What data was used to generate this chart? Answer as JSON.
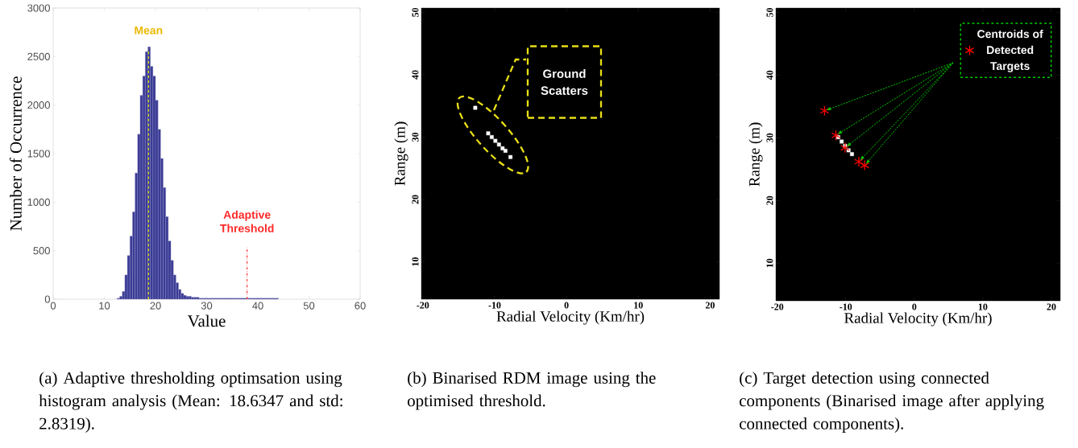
{
  "chart_data": [
    {
      "type": "histogram",
      "xlabel": "Value",
      "ylabel": "Number of Occurrence",
      "color": "#3b3b96",
      "bins": [
        12.5,
        13,
        13.5,
        14,
        14.5,
        15,
        15.5,
        16,
        16.5,
        17,
        17.5,
        18,
        18.5,
        19,
        19.5,
        20,
        20.5,
        21,
        21.5,
        22,
        22.5,
        23,
        23.5,
        24,
        24.5,
        25,
        25.5,
        26,
        26.5,
        27,
        27.5,
        28,
        28.5,
        29,
        29.5,
        30,
        30.5,
        31,
        31.5,
        32,
        32.5,
        33,
        33.5,
        34,
        34.5,
        35,
        35.5,
        36,
        36.5,
        37,
        37.5,
        38,
        38.5,
        39,
        39.5,
        40,
        40.5,
        41,
        41.5,
        42,
        42.5,
        43,
        43.5,
        44
      ],
      "values": [
        10,
        30,
        80,
        250,
        450,
        650,
        900,
        1300,
        1700,
        2100,
        2300,
        2550,
        2600,
        2400,
        2300,
        2050,
        1750,
        1450,
        1150,
        850,
        600,
        400,
        250,
        170,
        100,
        60,
        40,
        30,
        30,
        20,
        20,
        20,
        10,
        10,
        10,
        10,
        10,
        10,
        10,
        10,
        10,
        10,
        10,
        10,
        10,
        10,
        10,
        10,
        10,
        10,
        10,
        10,
        10,
        10,
        10,
        10,
        10,
        10,
        10,
        10,
        10,
        10,
        10
      ],
      "xlim": [
        0,
        60
      ],
      "ylim": [
        0,
        3000
      ],
      "xticks": [
        0,
        10,
        20,
        30,
        40,
        50,
        60
      ],
      "yticks": [
        0,
        500,
        1000,
        1500,
        2000,
        2500,
        3000
      ],
      "ref_lines": [
        {
          "axis": "x",
          "value": 18.63,
          "label": "Mean",
          "color": "#e6e600",
          "line_style": "dashed"
        },
        {
          "axis": "x",
          "value": 37.9,
          "label": "Adaptive Threshold",
          "color": "#ff3333",
          "line_style": "dashdot"
        }
      ],
      "annotations": [
        "(a) Adaptive thresholding optimsation using histogram analysis (Mean: 18.6347 and std: 2.8319)."
      ]
    },
    {
      "type": "scatter",
      "xlabel": "Radial Velocity (Km/hr)",
      "ylabel": "Range (m)",
      "marker": "square",
      "series": [
        {
          "color": "#ffffff",
          "x": [
            -10.9,
            -10.4,
            -9.9,
            -9.4,
            -8.9,
            -8.5,
            -12.7,
            -7.8
          ],
          "values": [
            30.6,
            30.0,
            29.4,
            28.8,
            28.2,
            27.8,
            34.7,
            26.8
          ]
        }
      ],
      "xlim": [
        -20.2,
        21.3
      ],
      "ylim": [
        4,
        50.7
      ],
      "xticks": [
        -20,
        -10,
        0,
        10,
        20
      ],
      "yticks": [
        10,
        20,
        30,
        40,
        50
      ],
      "annotations": [
        "Ground Scatters",
        "(b) Binarised RDM image using the optimised threshold."
      ]
    },
    {
      "type": "scatter",
      "xlabel": "Radial Velocity (Km/hr)",
      "ylabel": "Range (m)",
      "legend": "top right",
      "series": [
        {
          "color": "#ffffff",
          "marker": "square",
          "x": [
            -11.1,
            -10.6,
            -10.1,
            -9.6,
            -9.1
          ],
          "values": [
            30.1,
            29.4,
            28.7,
            28.0,
            27.4
          ]
        },
        {
          "name": "Centroids of Detected Targets",
          "color": "#ff0000",
          "marker": "cross",
          "x": [
            -13.1,
            -11.45,
            -10.1,
            -8.1,
            -7.25
          ],
          "values": [
            34.3,
            30.4,
            28.4,
            26.2,
            25.6
          ]
        }
      ],
      "xlim": [
        -20.2,
        21.3
      ],
      "ylim": [
        4,
        50.7
      ],
      "xticks": [
        -20,
        -10,
        0,
        10,
        20
      ],
      "yticks": [
        10,
        20,
        30,
        40,
        50
      ],
      "annotations": [
        "(c) Target detection using connected components (Binarised image after applying connected components)."
      ]
    }
  ]
}
